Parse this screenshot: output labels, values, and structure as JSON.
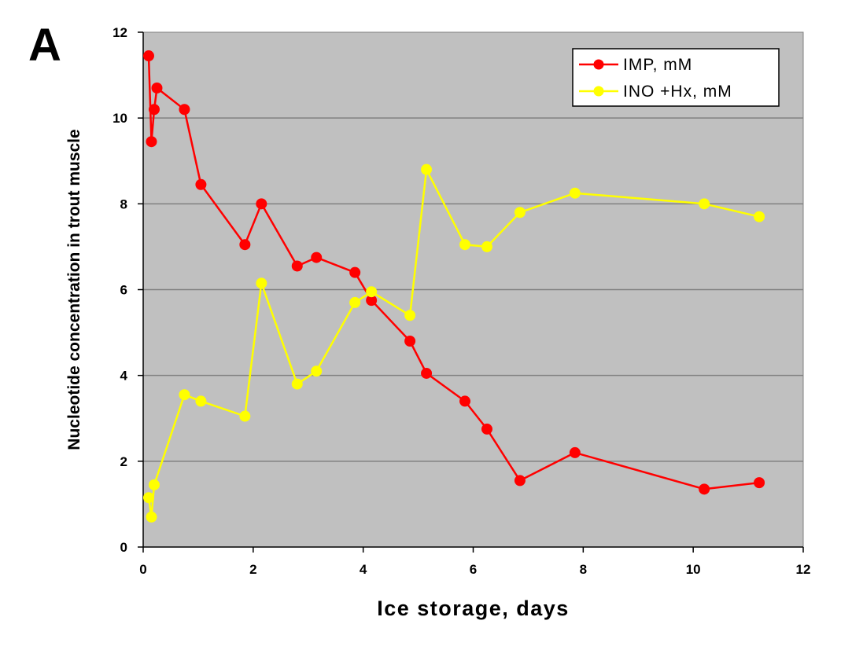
{
  "panel_label": "A",
  "chart_data": {
    "type": "line",
    "title": "",
    "xlabel": "Ice storage, days",
    "ylabel": "Nucleotide concentration in trout muscle",
    "xlim": [
      0,
      12
    ],
    "ylim": [
      0,
      12
    ],
    "xticks": [
      0,
      2,
      4,
      6,
      8,
      10,
      12
    ],
    "yticks": [
      0,
      2,
      4,
      6,
      8,
      10,
      12
    ],
    "grid": "horizontal",
    "legend_position": "top-right",
    "plot_background": "#c0c0c0",
    "series": [
      {
        "name": "IMP, mM",
        "color": "#ff0000",
        "x": [
          0.1,
          0.15,
          0.2,
          0.25,
          0.75,
          1.05,
          1.85,
          2.15,
          2.8,
          3.15,
          3.85,
          4.15,
          4.85,
          5.15,
          5.85,
          6.25,
          6.85,
          7.85,
          10.2,
          11.2
        ],
        "y": [
          11.45,
          9.45,
          10.2,
          10.7,
          10.2,
          8.45,
          7.05,
          8.0,
          6.55,
          6.75,
          6.4,
          5.75,
          4.8,
          4.05,
          3.4,
          2.75,
          1.55,
          2.2,
          1.35,
          1.5
        ]
      },
      {
        "name": "INO +Hx, mM",
        "color": "#ffff00",
        "x": [
          0.1,
          0.15,
          0.2,
          0.75,
          1.05,
          1.85,
          2.15,
          2.8,
          3.15,
          3.85,
          4.15,
          4.85,
          5.15,
          5.85,
          6.25,
          6.85,
          7.85,
          10.2,
          11.2
        ],
        "y": [
          1.15,
          0.7,
          1.45,
          3.55,
          3.4,
          3.05,
          6.15,
          3.8,
          4.1,
          5.7,
          5.95,
          5.4,
          8.8,
          7.05,
          7.0,
          7.8,
          8.25,
          8.0,
          7.7
        ]
      }
    ]
  }
}
